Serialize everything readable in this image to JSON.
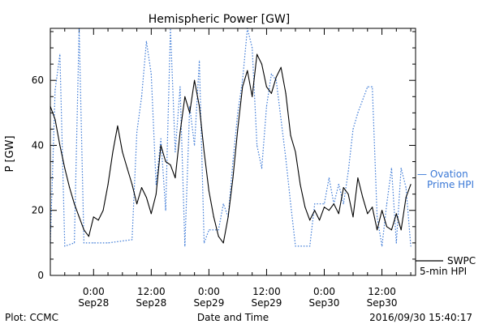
{
  "chart_data": {
    "type": "line",
    "title": "Hemispheric Power [GW]",
    "ylabel": "P [GW]",
    "xlabel": "Date and Time",
    "ylim": [
      0,
      76
    ],
    "yticks": [
      0,
      20,
      40,
      60
    ],
    "xlim": [
      "2016-09-27T15:00",
      "2016-09-30T19:00"
    ],
    "xticks": [
      {
        "time": "2016-09-28T00:00",
        "label_top": "0:00",
        "label_bottom": "Sep28"
      },
      {
        "time": "2016-09-28T12:00",
        "label_top": "12:00",
        "label_bottom": "Sep28"
      },
      {
        "time": "2016-09-29T00:00",
        "label_top": "0:00",
        "label_bottom": "Sep29"
      },
      {
        "time": "2016-09-29T12:00",
        "label_top": "12:00",
        "label_bottom": "Sep29"
      },
      {
        "time": "2016-09-30T00:00",
        "label_top": "0:00",
        "label_bottom": "Sep30"
      },
      {
        "time": "2016-09-30T12:00",
        "label_top": "12:00",
        "label_bottom": "Sep30"
      }
    ],
    "grid": false,
    "series": [
      {
        "name": "SWPC 5-min HPI",
        "legend_lines": [
          "SWPC",
          "5-min HPI"
        ],
        "color": "#000000",
        "style": "solid",
        "points": [
          [
            "2016-09-27T15:00",
            52
          ],
          [
            "2016-09-27T16:00",
            48
          ],
          [
            "2016-09-27T17:00",
            40
          ],
          [
            "2016-09-27T18:00",
            33
          ],
          [
            "2016-09-27T19:00",
            27
          ],
          [
            "2016-09-27T20:00",
            22
          ],
          [
            "2016-09-27T21:00",
            18
          ],
          [
            "2016-09-27T22:00",
            14
          ],
          [
            "2016-09-27T23:00",
            12
          ],
          [
            "2016-09-28T00:00",
            18
          ],
          [
            "2016-09-28T01:00",
            17
          ],
          [
            "2016-09-28T02:00",
            20
          ],
          [
            "2016-09-28T03:00",
            28
          ],
          [
            "2016-09-28T04:00",
            38
          ],
          [
            "2016-09-28T05:00",
            46
          ],
          [
            "2016-09-28T06:00",
            38
          ],
          [
            "2016-09-28T07:00",
            33
          ],
          [
            "2016-09-28T08:00",
            28
          ],
          [
            "2016-09-28T09:00",
            22
          ],
          [
            "2016-09-28T10:00",
            27
          ],
          [
            "2016-09-28T11:00",
            24
          ],
          [
            "2016-09-28T12:00",
            19
          ],
          [
            "2016-09-28T13:00",
            25
          ],
          [
            "2016-09-28T14:00",
            40
          ],
          [
            "2016-09-28T15:00",
            35
          ],
          [
            "2016-09-28T16:00",
            34
          ],
          [
            "2016-09-28T17:00",
            30
          ],
          [
            "2016-09-28T18:00",
            44
          ],
          [
            "2016-09-28T19:00",
            55
          ],
          [
            "2016-09-28T20:00",
            50
          ],
          [
            "2016-09-28T21:00",
            60
          ],
          [
            "2016-09-28T22:00",
            52
          ],
          [
            "2016-09-28T23:00",
            38
          ],
          [
            "2016-09-29T00:00",
            26
          ],
          [
            "2016-09-29T01:00",
            18
          ],
          [
            "2016-09-29T02:00",
            12
          ],
          [
            "2016-09-29T03:00",
            10
          ],
          [
            "2016-09-29T04:00",
            18
          ],
          [
            "2016-09-29T05:00",
            30
          ],
          [
            "2016-09-29T06:00",
            45
          ],
          [
            "2016-09-29T07:00",
            58
          ],
          [
            "2016-09-29T08:00",
            63
          ],
          [
            "2016-09-29T09:00",
            55
          ],
          [
            "2016-09-29T10:00",
            68
          ],
          [
            "2016-09-29T11:00",
            65
          ],
          [
            "2016-09-29T12:00",
            58
          ],
          [
            "2016-09-29T13:00",
            56
          ],
          [
            "2016-09-29T14:00",
            61
          ],
          [
            "2016-09-29T15:00",
            64
          ],
          [
            "2016-09-29T16:00",
            56
          ],
          [
            "2016-09-29T17:00",
            43
          ],
          [
            "2016-09-29T18:00",
            38
          ],
          [
            "2016-09-29T19:00",
            28
          ],
          [
            "2016-09-29T20:00",
            21
          ],
          [
            "2016-09-29T21:00",
            17
          ],
          [
            "2016-09-29T22:00",
            20
          ],
          [
            "2016-09-29T23:00",
            17
          ],
          [
            "2016-09-30T00:00",
            21
          ],
          [
            "2016-09-30T01:00",
            20
          ],
          [
            "2016-09-30T02:00",
            22
          ],
          [
            "2016-09-30T03:00",
            19
          ],
          [
            "2016-09-30T04:00",
            27
          ],
          [
            "2016-09-30T05:00",
            25
          ],
          [
            "2016-09-30T06:00",
            18
          ],
          [
            "2016-09-30T07:00",
            30
          ],
          [
            "2016-09-30T08:00",
            24
          ],
          [
            "2016-09-30T09:00",
            19
          ],
          [
            "2016-09-30T10:00",
            21
          ],
          [
            "2016-09-30T11:00",
            14
          ],
          [
            "2016-09-30T12:00",
            20
          ],
          [
            "2016-09-30T13:00",
            15
          ],
          [
            "2016-09-30T14:00",
            14
          ],
          [
            "2016-09-30T15:00",
            19
          ],
          [
            "2016-09-30T16:00",
            14
          ],
          [
            "2016-09-30T17:00",
            24
          ],
          [
            "2016-09-30T18:00",
            28
          ]
        ]
      },
      {
        "name": "Ovation Prime HPI",
        "legend_lines": [
          "— Ovation",
          "Prime HPI"
        ],
        "color": "#3a78d6",
        "style": "dotted",
        "points": [
          [
            "2016-09-27T15:00",
            10
          ],
          [
            "2016-09-27T16:00",
            57
          ],
          [
            "2016-09-27T17:00",
            68
          ],
          [
            "2016-09-27T18:00",
            9
          ],
          [
            "2016-09-27T20:00",
            10
          ],
          [
            "2016-09-27T21:00",
            76
          ],
          [
            "2016-09-27T22:00",
            10
          ],
          [
            "2016-09-28T00:00",
            10
          ],
          [
            "2016-09-28T03:00",
            10
          ],
          [
            "2016-09-28T08:00",
            11
          ],
          [
            "2016-09-28T09:00",
            44
          ],
          [
            "2016-09-28T10:00",
            55
          ],
          [
            "2016-09-28T11:00",
            72
          ],
          [
            "2016-09-28T12:00",
            62
          ],
          [
            "2016-09-28T13:00",
            28
          ],
          [
            "2016-09-28T14:00",
            42
          ],
          [
            "2016-09-28T15:00",
            20
          ],
          [
            "2016-09-28T16:00",
            76
          ],
          [
            "2016-09-28T17:00",
            38
          ],
          [
            "2016-09-28T18:00",
            58
          ],
          [
            "2016-09-28T19:00",
            9
          ],
          [
            "2016-09-28T20:00",
            52
          ],
          [
            "2016-09-28T21:00",
            40
          ],
          [
            "2016-09-28T22:00",
            66
          ],
          [
            "2016-09-28T23:00",
            10
          ],
          [
            "2016-09-29T00:00",
            14
          ],
          [
            "2016-09-29T02:00",
            14
          ],
          [
            "2016-09-29T03:00",
            22
          ],
          [
            "2016-09-29T04:00",
            18
          ],
          [
            "2016-09-29T05:00",
            35
          ],
          [
            "2016-09-29T06:00",
            50
          ],
          [
            "2016-09-29T07:00",
            60
          ],
          [
            "2016-09-29T08:00",
            76
          ],
          [
            "2016-09-29T09:00",
            70
          ],
          [
            "2016-09-29T10:00",
            40
          ],
          [
            "2016-09-29T11:00",
            33
          ],
          [
            "2016-09-29T12:00",
            52
          ],
          [
            "2016-09-29T13:00",
            62
          ],
          [
            "2016-09-29T14:00",
            60
          ],
          [
            "2016-09-29T15:00",
            48
          ],
          [
            "2016-09-29T16:00",
            36
          ],
          [
            "2016-09-29T17:00",
            22
          ],
          [
            "2016-09-29T18:00",
            9
          ],
          [
            "2016-09-29T21:00",
            9
          ],
          [
            "2016-09-29T22:00",
            22
          ],
          [
            "2016-09-30T00:00",
            22
          ],
          [
            "2016-09-30T01:00",
            30
          ],
          [
            "2016-09-30T02:00",
            22
          ],
          [
            "2016-09-30T03:00",
            28
          ],
          [
            "2016-09-30T04:00",
            22
          ],
          [
            "2016-09-30T05:00",
            32
          ],
          [
            "2016-09-30T06:00",
            45
          ],
          [
            "2016-09-30T07:00",
            50
          ],
          [
            "2016-09-30T09:00",
            58
          ],
          [
            "2016-09-30T10:00",
            58
          ],
          [
            "2016-09-30T11:00",
            18
          ],
          [
            "2016-09-30T12:00",
            9
          ],
          [
            "2016-09-30T13:00",
            22
          ],
          [
            "2016-09-30T14:00",
            33
          ],
          [
            "2016-09-30T15:00",
            10
          ],
          [
            "2016-09-30T16:00",
            33
          ],
          [
            "2016-09-30T17:00",
            27
          ],
          [
            "2016-09-30T18:00",
            9
          ]
        ]
      }
    ]
  },
  "footer": {
    "left": "Plot: CCMC",
    "center": "Date and Time",
    "right": "2016/09/30  15:40:17"
  }
}
